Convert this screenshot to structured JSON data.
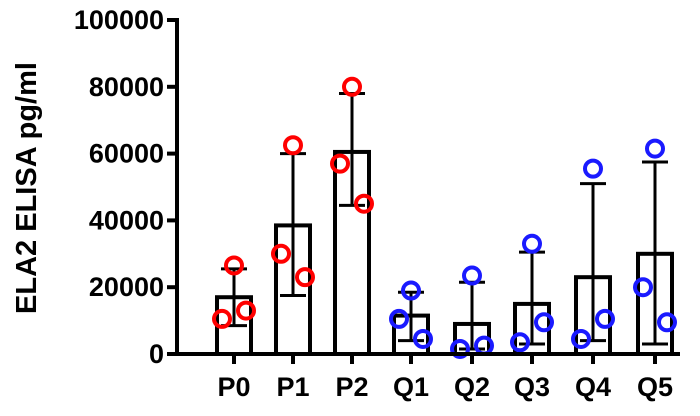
{
  "chart_data": {
    "type": "bar",
    "ylabel": "ELA2 ELISA pg/ml",
    "xlabel": "",
    "title": "",
    "ylim": [
      0,
      100000
    ],
    "yticks": [
      0,
      20000,
      40000,
      60000,
      80000,
      100000
    ],
    "ytick_labels": [
      "0",
      "20000",
      "40000",
      "60000",
      "80000",
      "100000"
    ],
    "categories": [
      "P0",
      "P1",
      "P2",
      "Q1",
      "Q2",
      "Q3",
      "Q4",
      "Q5"
    ],
    "means": [
      17000,
      38500,
      60500,
      11500,
      9000,
      15000,
      23000,
      30000
    ],
    "error_upper": [
      25500,
      60000,
      78000,
      18500,
      21500,
      30500,
      51000,
      57500
    ],
    "error_lower": [
      8500,
      17500,
      44500,
      4000,
      1500,
      3000,
      4000,
      3000
    ],
    "points": [
      [
        26500,
        10500,
        13000
      ],
      [
        62500,
        30000,
        23000
      ],
      [
        80000,
        57000,
        45000
      ],
      [
        19000,
        10500,
        4500
      ],
      [
        23500,
        1500,
        2500
      ],
      [
        33000,
        3500,
        9500
      ],
      [
        55500,
        4500,
        10500
      ],
      [
        61500,
        20000,
        9500
      ]
    ],
    "point_colors": [
      "#ff0000",
      "#ff0000",
      "#ff0000",
      "#1a1aff",
      "#1a1aff",
      "#1a1aff",
      "#1a1aff",
      "#1a1aff"
    ],
    "grid": false,
    "legend": "none"
  }
}
